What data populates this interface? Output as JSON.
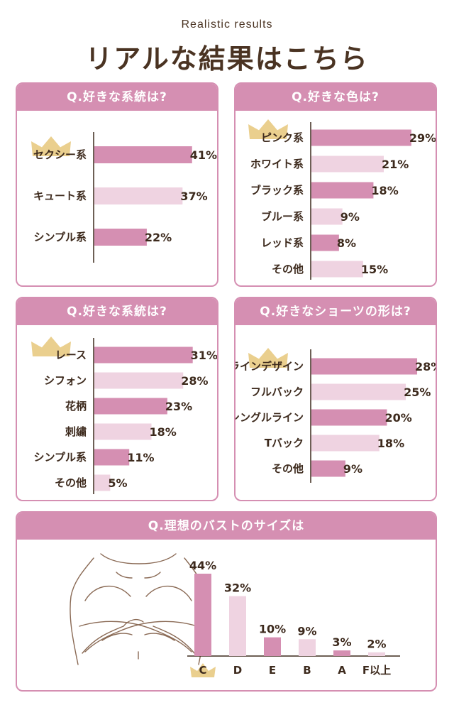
{
  "header": {
    "subtitle": "Realistic results",
    "title": "リアルな結果はこちら"
  },
  "colors": {
    "accent": "#d58fb2",
    "bar_dark": "#d58fb2",
    "bar_light": "#efd3e1",
    "text": "#3d2a1d",
    "crown": "#e6c77a"
  },
  "chart_data": [
    {
      "id": "chart1",
      "type": "bar",
      "orientation": "horizontal",
      "title": "Q.好きな系統は?",
      "categories": [
        "セクシー系",
        "キュート系",
        "シンプル系"
      ],
      "values": [
        41,
        37,
        22
      ],
      "value_labels": [
        "41%",
        "37%",
        "22%"
      ],
      "xlim": [
        0,
        50
      ],
      "top_marker": "crown"
    },
    {
      "id": "chart2",
      "type": "bar",
      "orientation": "horizontal",
      "title": "Q.好きな色は?",
      "categories": [
        "ピンク系",
        "ホワイト系",
        "ブラック系",
        "ブルー系",
        "レッド系",
        "その他"
      ],
      "values": [
        29,
        21,
        18,
        9,
        8,
        15
      ],
      "value_labels": [
        "29%",
        "21%",
        "18%",
        "9%",
        "8%",
        "15%"
      ],
      "xlim": [
        0,
        35
      ],
      "top_marker": "crown"
    },
    {
      "id": "chart3",
      "type": "bar",
      "orientation": "horizontal",
      "title": "Q.好きな系統は?",
      "categories": [
        "レース",
        "シフォン",
        "花柄",
        "刺繍",
        "シンプル系",
        "その他"
      ],
      "values": [
        31,
        28,
        23,
        18,
        11,
        5
      ],
      "value_labels": [
        "31%",
        "28%",
        "23%",
        "18%",
        "11%",
        "5%"
      ],
      "xlim": [
        0,
        38
      ],
      "top_marker": "crown"
    },
    {
      "id": "chart4",
      "type": "bar",
      "orientation": "horizontal",
      "title": "Q.好きなショーツの形は?",
      "categories": [
        "ラインデザイン",
        "フルバック",
        "シングルライン",
        "Tバック",
        "その他"
      ],
      "values": [
        28,
        25,
        20,
        18,
        9
      ],
      "value_labels": [
        "28%",
        "25%",
        "20%",
        "18%",
        "9%"
      ],
      "xlim": [
        0,
        31
      ],
      "top_marker": "crown"
    },
    {
      "id": "chart5",
      "type": "bar",
      "orientation": "vertical",
      "title": "Q.理想のバストのサイズは",
      "categories": [
        "C",
        "D",
        "E",
        "B",
        "A",
        "F以上"
      ],
      "values": [
        44,
        32,
        10,
        9,
        3,
        2
      ],
      "value_labels": [
        "44%",
        "32%",
        "10%",
        "9%",
        "3%",
        "2%"
      ],
      "ylim": [
        0,
        44
      ],
      "top_marker": "crown"
    }
  ]
}
